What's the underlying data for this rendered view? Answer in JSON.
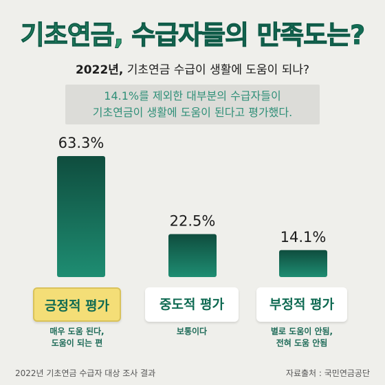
{
  "header": {
    "title_accent": "기초연금,",
    "title_rest": " 수급자들의 만족도는?",
    "subtitle_bold": "2022년,",
    "subtitle_rest": " 기초연금 수급이 생활에 도움이 되나?",
    "summary_line1": "14.1%를 제외한 대부분의 수급자들이",
    "summary_line2": "기초연금이 생활에 도움이 된다고 평가했다."
  },
  "chart_data": {
    "type": "bar",
    "categories": [
      "긍정적 평가",
      "중도적 평가",
      "부정적 평가"
    ],
    "values": [
      63.3,
      22.5,
      14.1
    ],
    "value_labels": [
      "63.3%",
      "22.5%",
      "14.1%"
    ],
    "descriptions": [
      [
        "매우 도움 된다,",
        "도움이 되는 편"
      ],
      [
        "보통이다"
      ],
      [
        "별로 도움이 안됨,",
        "전혀 도움 안됨"
      ]
    ],
    "ylim": [
      0,
      63.3
    ],
    "grid": false,
    "colors": {
      "bar_top": "#0f4d3e",
      "bar_bottom": "#1e8d72",
      "highlight": "#f4de77"
    }
  },
  "footer": {
    "note": "2022년 기초연금 수급자 대상 조사 결과",
    "source": "자료출처 : 국민연금공단"
  }
}
